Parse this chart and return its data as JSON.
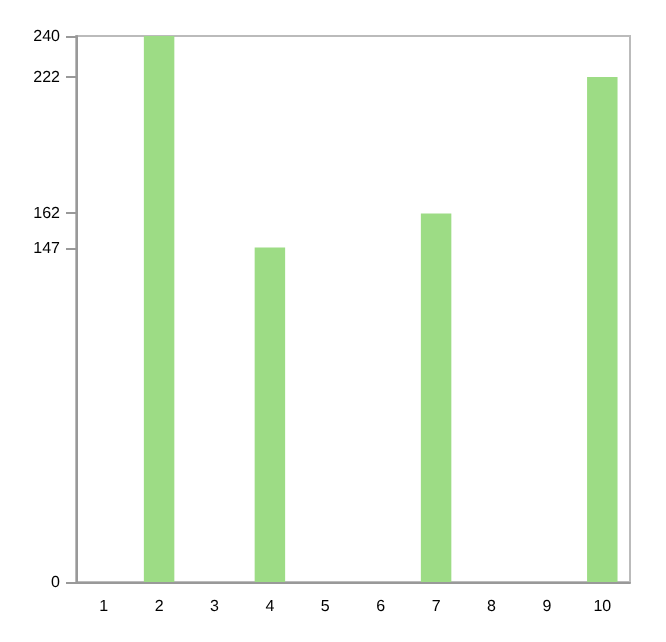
{
  "chart_data": {
    "type": "bar",
    "categories": [
      "1",
      "2",
      "3",
      "4",
      "5",
      "6",
      "7",
      "8",
      "9",
      "10"
    ],
    "values": [
      0,
      240,
      0,
      147,
      0,
      0,
      162,
      0,
      0,
      222
    ],
    "color": "#9ddc85",
    "ylim": [
      0,
      240
    ],
    "yticks": [
      0,
      147,
      162,
      222,
      240
    ],
    "grid": false
  }
}
